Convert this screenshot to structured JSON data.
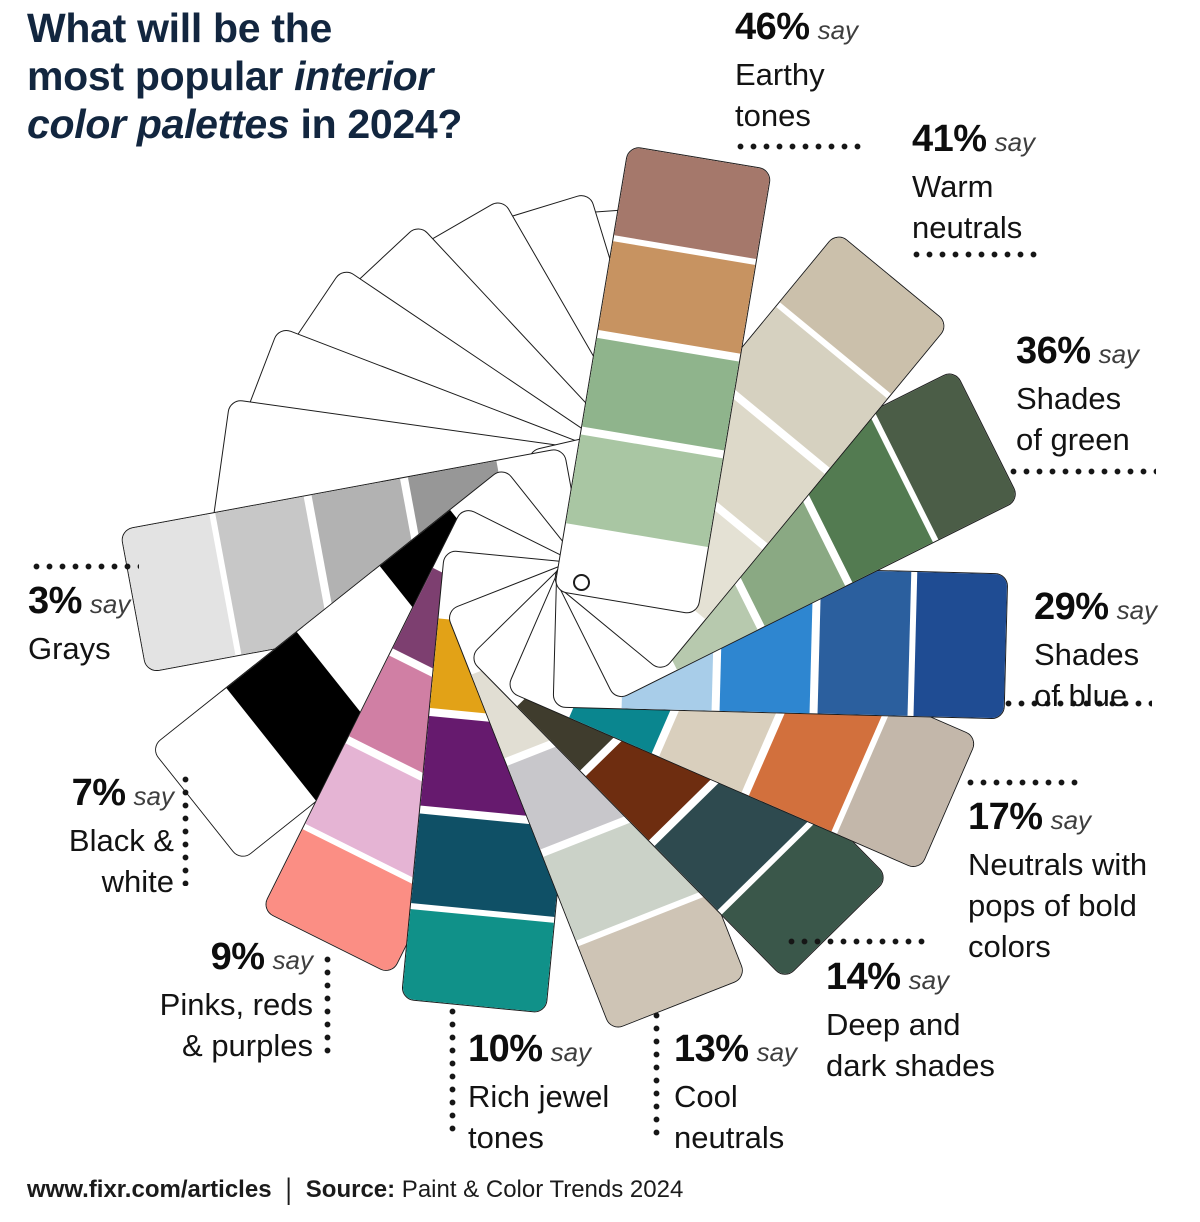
{
  "title": {
    "line1": "What will be the",
    "line2_regular": "most popular ",
    "line2_italic": "interior",
    "line3_italic": "color palettes",
    "line3_regular": " in 2024?"
  },
  "callout_say": "say",
  "footer": {
    "site": "www.fixr.com/articles",
    "divider": "|",
    "source_label": "Source:",
    "source_text": " Paint & Color Trends 2024"
  },
  "chart_data": {
    "type": "bar",
    "title": "What will be the most popular interior color palettes in 2024?",
    "unit": "%",
    "categories": [
      "Earthy tones",
      "Warm neutrals",
      "Shades of green",
      "Shades of blue",
      "Neutrals with pops of bold colors",
      "Deep and dark shades",
      "Cool neutrals",
      "Rich jewel tones",
      "Pinks, reds & purples",
      "Black & white",
      "Grays"
    ],
    "values": [
      46,
      41,
      36,
      29,
      17,
      14,
      13,
      10,
      9,
      7,
      3
    ],
    "legend": "none",
    "palettes": [
      {
        "label": "Earthy tones",
        "pct": "46%",
        "value": 46,
        "angle_deg": 17,
        "label_lines": [
          "Earthy",
          "tones"
        ],
        "swatches_outer_to_inner": [
          "#A5786B",
          "#C79361",
          "#8FB48C",
          "#A9C6A3"
        ]
      },
      {
        "label": "Warm neutrals",
        "pct": "41%",
        "value": 41,
        "angle_deg": 47,
        "label_lines": [
          "Warm",
          "neutrals"
        ],
        "swatches_outer_to_inner": [
          "#CBC0AB",
          "#D6D1C0",
          "#DDD9C9",
          "#E4E1D4"
        ]
      },
      {
        "label": "Shades of green",
        "pct": "36%",
        "value": 36,
        "angle_deg": 71,
        "label_lines": [
          "Shades",
          "of green"
        ],
        "swatches_outer_to_inner": [
          "#4B5D47",
          "#537B51",
          "#8AA983",
          "#B7C9AE"
        ]
      },
      {
        "label": "Shades of blue",
        "pct": "29%",
        "value": 29,
        "angle_deg": 99,
        "label_lines": [
          "Shades",
          "of blue"
        ],
        "swatches_outer_to_inner": [
          "#1F4C93",
          "#2B5F9E",
          "#2E86D0",
          "#A8CDE9"
        ]
      },
      {
        "label": "Neutrals with pops of bold colors",
        "pct": "17%",
        "value": 17,
        "angle_deg": 121,
        "label_lines": [
          "Neutrals with",
          "pops of bold",
          "colors"
        ],
        "swatches_outer_to_inner": [
          "#C3B7AA",
          "#D2703D",
          "#D9CFBD",
          "#0A868F"
        ]
      },
      {
        "label": "Deep and dark shades",
        "pct": "14%",
        "value": 14,
        "angle_deg": 143,
        "label_lines": [
          "Deep and",
          "dark shades"
        ],
        "swatches_outer_to_inner": [
          "#3A574A",
          "#2E4A4F",
          "#6E2D10",
          "#3F3C2D"
        ]
      },
      {
        "label": "Cool neutrals",
        "pct": "13%",
        "value": 13,
        "angle_deg": 166,
        "label_lines": [
          "Cool",
          "neutrals"
        ],
        "swatches_outer_to_inner": [
          "#CEC4B5",
          "#CBD2C8",
          "#C8C7CB",
          "#E1DED3"
        ]
      },
      {
        "label": "Rich jewel tones",
        "pct": "10%",
        "value": 10,
        "angle_deg": 193,
        "label_lines": [
          "Rich jewel",
          "tones"
        ],
        "swatches_outer_to_inner": [
          "#109189",
          "#0F5066",
          "#661A6E",
          "#E2A217"
        ]
      },
      {
        "label": "Pinks, reds & purples",
        "pct": "9%",
        "value": 9,
        "angle_deg": 214,
        "label_lines": [
          "Pinks, reds",
          "& purples"
        ],
        "swatches_outer_to_inner": [
          "#FB8E84",
          "#E5B4D4",
          "#D07FA4",
          "#7D3F70"
        ]
      },
      {
        "label": "Black & white",
        "pct": "7%",
        "value": 7,
        "angle_deg": 239,
        "label_lines": [
          "Black &",
          "white"
        ],
        "swatches_outer_to_inner": [
          "#FFFFFF",
          "#000000",
          "#FFFFFF",
          "#000000"
        ]
      },
      {
        "label": "Grays",
        "pct": "3%",
        "value": 3,
        "angle_deg": 267,
        "label_lines": [
          "Grays"
        ],
        "swatches_outer_to_inner": [
          "#E3E3E3",
          "#C7C7C7",
          "#B2B2B2",
          "#979797"
        ]
      }
    ]
  }
}
